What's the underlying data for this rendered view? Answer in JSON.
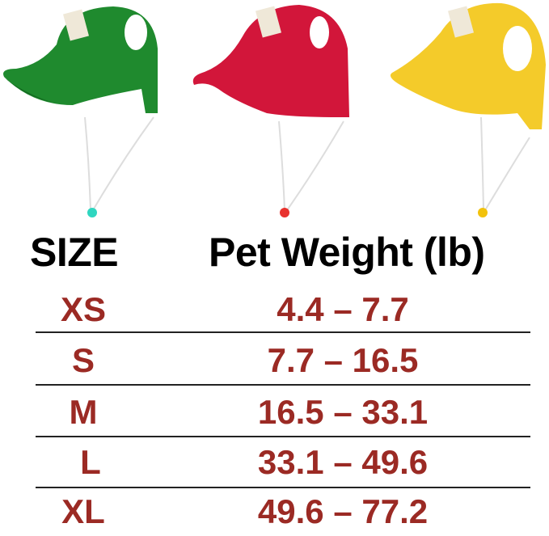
{
  "products": [
    {
      "name": "green-cap",
      "color": "#1f8a2e",
      "toggle_color": "#2fd6c0"
    },
    {
      "name": "red-cap",
      "color": "#d2163a",
      "toggle_color": "#e8322e"
    },
    {
      "name": "yellow-cap",
      "color": "#f4cb2a",
      "toggle_color": "#f2c20c"
    }
  ],
  "table": {
    "headers": {
      "size": "SIZE",
      "weight": "Pet Weight (lb)"
    },
    "text_color": "#9b2a24",
    "rows": [
      {
        "size": "XS",
        "weight": "4.4 – 7.7"
      },
      {
        "size": "S",
        "weight": "7.7 – 16.5"
      },
      {
        "size": "M",
        "weight": "16.5 – 33.1"
      },
      {
        "size": "L",
        "weight": "33.1 – 49.6"
      },
      {
        "size": "XL",
        "weight": "49.6 – 77.2"
      }
    ]
  }
}
